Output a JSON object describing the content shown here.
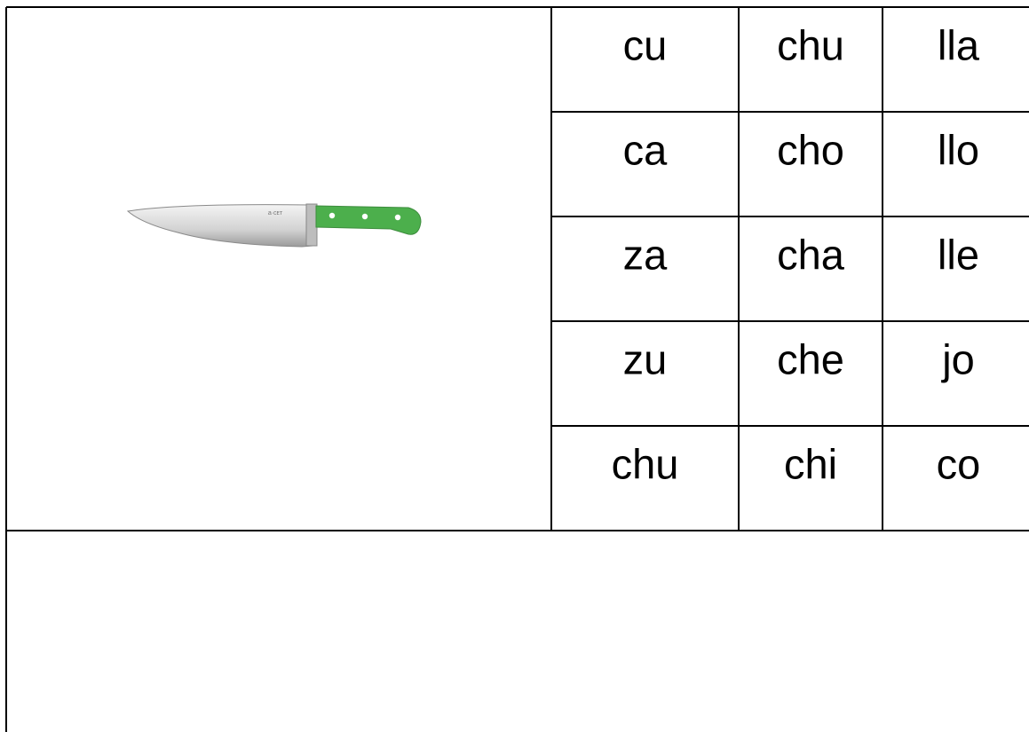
{
  "table": {
    "rows": [
      [
        "cu",
        "chu",
        "lla"
      ],
      [
        "ca",
        "cho",
        "llo"
      ],
      [
        "za",
        "cha",
        "lle"
      ],
      [
        "zu",
        "che",
        "jo"
      ],
      [
        "chu",
        "chi",
        "co"
      ]
    ]
  }
}
